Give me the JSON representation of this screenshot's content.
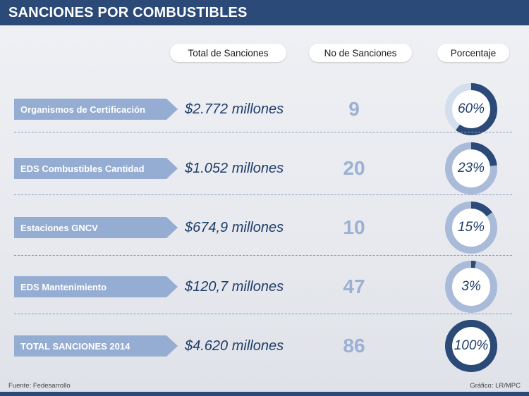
{
  "header": {
    "title": "SANCIONES POR COMBUSTIBLES"
  },
  "columns": {
    "total": "Total de Sanciones",
    "number": "No  de Sanciones",
    "percent": "Porcentaje"
  },
  "rows": [
    {
      "label": "Organismos de Certificación",
      "amount": "$2.772 millones",
      "count": "9",
      "percent_text": "60%"
    },
    {
      "label": "EDS Combustibles Cantidad",
      "amount": "$1.052 millones",
      "count": "20",
      "percent_text": "23%"
    },
    {
      "label": "Estaciones GNCV",
      "amount": "$674,9 millones",
      "count": "10",
      "percent_text": "15%"
    },
    {
      "label": "EDS Mantenimiento",
      "amount": "$120,7 millones",
      "count": "47",
      "percent_text": "3%"
    },
    {
      "label": "TOTAL SANCIONES 2014",
      "amount": "$4.620 millones",
      "count": "86",
      "percent_text": "100%"
    }
  ],
  "footer": {
    "source": "Fuente: Fedesarrollo",
    "credit": "Gráfico: LR/MPC"
  },
  "colors": {
    "header_bg": "#2b4a78",
    "donut_fill": "#2b4a78",
    "donut_track": "#a9bbd9",
    "donut_track_first": "#d3deee",
    "label_bg": "#96add3",
    "count_text": "#9bb0d3"
  },
  "chart_data": {
    "type": "table",
    "categories": [
      "Organismos de Certificación",
      "EDS Combustibles Cantidad",
      "Estaciones GNCV",
      "EDS Mantenimiento",
      "TOTAL SANCIONES 2014"
    ],
    "series": [
      {
        "name": "Total de Sanciones",
        "values": [
          "$2.772 millones",
          "$1.052 millones",
          "$674,9 millones",
          "$120,7 millones",
          "$4.620 millones"
        ]
      },
      {
        "name": "No  de Sanciones",
        "values": [
          9,
          20,
          10,
          47,
          86
        ]
      },
      {
        "name": "Porcentaje",
        "values": [
          60,
          23,
          15,
          3,
          100
        ]
      }
    ]
  }
}
